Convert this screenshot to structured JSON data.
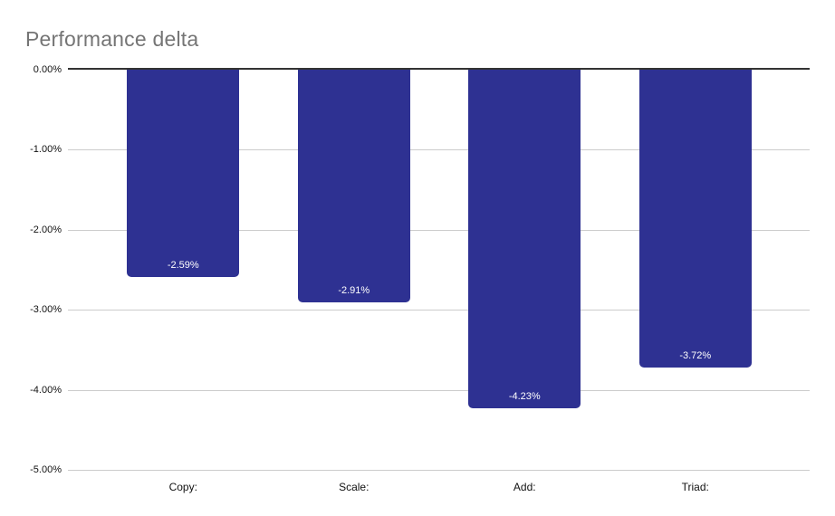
{
  "chart_data": {
    "type": "bar",
    "title": "Performance delta",
    "categories": [
      "Copy:",
      "Scale:",
      "Add:",
      "Triad:"
    ],
    "values": [
      -2.59,
      -2.91,
      -4.23,
      -3.72
    ],
    "bar_labels": [
      "-2.59%",
      "-2.91%",
      "-4.23%",
      "-3.72%"
    ],
    "yticks": [
      0,
      -1,
      -2,
      -3,
      -4,
      -5
    ],
    "ytick_labels": [
      "0.00%",
      "-1.00%",
      "-2.00%",
      "-3.00%",
      "-4.00%",
      "-5.00%"
    ],
    "ylim": [
      -5,
      0
    ],
    "unit": "%",
    "grid": true,
    "legend": "none",
    "colors": {
      "bar": "#2e3192",
      "title": "#757575",
      "axis_text": "#111111",
      "gridline": "#cccccc",
      "zero_line": "#333333",
      "bar_label_text": "#ffffff",
      "background": "#ffffff"
    }
  }
}
